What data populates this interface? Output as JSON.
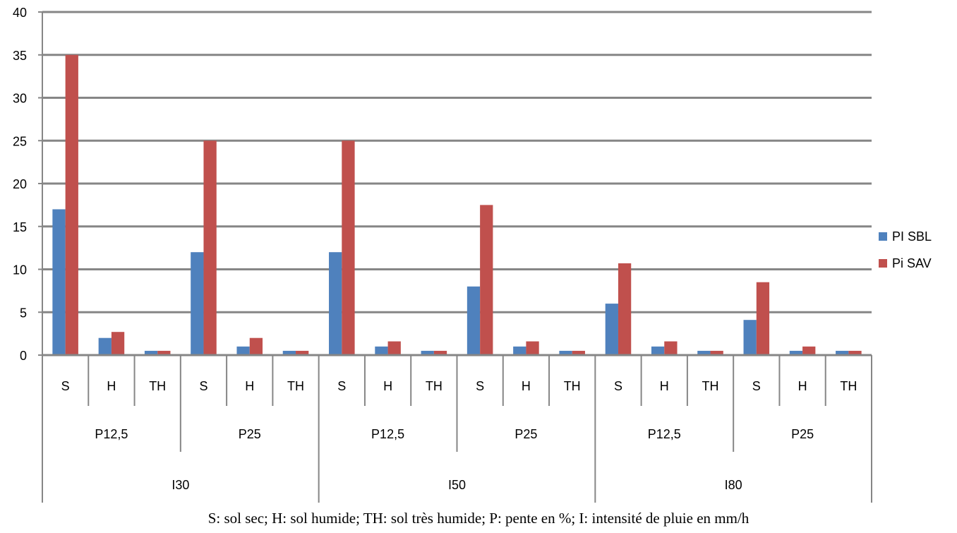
{
  "chart_data": {
    "type": "bar",
    "ylim": [
      0,
      40
    ],
    "yticks": [
      0,
      5,
      10,
      15,
      20,
      25,
      30,
      35,
      40
    ],
    "grid": true,
    "legend_position": "right",
    "groups": [
      {
        "label": "I30",
        "slopes": [
          {
            "label": "P12,5",
            "soils": [
              "S",
              "H",
              "TH"
            ]
          },
          {
            "label": "P25",
            "soils": [
              "S",
              "H",
              "TH"
            ]
          }
        ]
      },
      {
        "label": "I50",
        "slopes": [
          {
            "label": "P12,5",
            "soils": [
              "S",
              "H",
              "TH"
            ]
          },
          {
            "label": "P25",
            "soils": [
              "S",
              "H",
              "TH"
            ]
          }
        ]
      },
      {
        "label": "I80",
        "slopes": [
          {
            "label": "P12,5",
            "soils": [
              "S",
              "H",
              "TH"
            ]
          },
          {
            "label": "P25",
            "soils": [
              "S",
              "H",
              "TH"
            ]
          }
        ]
      }
    ],
    "categories": [
      "S",
      "H",
      "TH",
      "S",
      "H",
      "TH",
      "S",
      "H",
      "TH",
      "S",
      "H",
      "TH",
      "S",
      "H",
      "TH",
      "S",
      "H",
      "TH"
    ],
    "series": [
      {
        "name": "PI SBL",
        "color": "#4f81bd",
        "values": [
          17,
          2,
          0.5,
          12,
          1,
          0.5,
          12,
          1,
          0.5,
          8,
          1,
          0.5,
          6,
          1,
          0.5,
          4.1,
          0.5,
          0.5
        ]
      },
      {
        "name": "Pi SAV",
        "color": "#c0504d",
        "values": [
          35,
          2.7,
          0.5,
          25,
          2,
          0.5,
          25,
          1.6,
          0.5,
          17.5,
          1.6,
          0.5,
          10.7,
          1.6,
          0.5,
          8.5,
          1,
          0.5
        ]
      }
    ]
  },
  "caption": "S: sol sec; H: sol humide; TH: sol très humide; P: pente en %; I: intensité de pluie en mm/h"
}
